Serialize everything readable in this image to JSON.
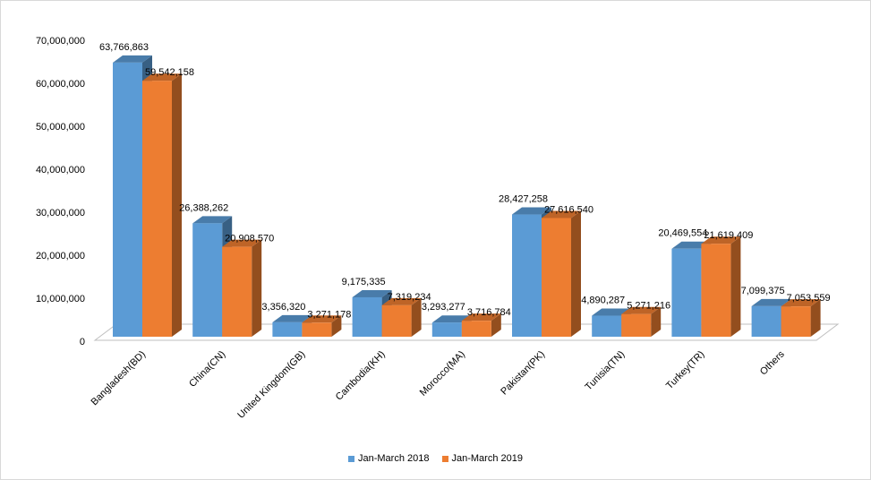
{
  "chart_data": {
    "type": "bar",
    "categories": [
      "Bangladesh(BD)",
      "China(CN)",
      "United Kingdom(GB)",
      "Cambodia(KH)",
      "Morocco(MA)",
      "Pakistan(PK)",
      "Tunisia(TN)",
      "Turkey(TR)",
      "Others"
    ],
    "series": [
      {
        "name": "Jan-March 2018",
        "values": [
          63766863,
          26388262,
          3356320,
          9175335,
          3293277,
          28427258,
          4890287,
          20469554,
          7099375
        ],
        "labels": [
          "63,766,863",
          "26,388,262",
          "3,356,320",
          "9,175,335",
          "3,293,277",
          "28,427,258",
          "4,890,287",
          "20,469,554",
          "7,099,375"
        ],
        "color": "#5b9bd5"
      },
      {
        "name": "Jan-March 2019",
        "values": [
          59542158,
          20908570,
          3271178,
          7319234,
          3716784,
          27616540,
          5271216,
          21619409,
          7053559
        ],
        "labels": [
          "59,542,158",
          "20,908,570",
          "3,271,178",
          "7,319,234",
          "3,716,784",
          "27,616,540",
          "5,271,216",
          "21,619,409",
          "7,053,559"
        ],
        "color": "#ed7d31"
      }
    ],
    "yticks": [
      "0",
      "10,000,000",
      "20,000,000",
      "30,000,000",
      "40,000,000",
      "50,000,000",
      "60,000,000",
      "70,000,000"
    ],
    "ylim": [
      0,
      70000000
    ],
    "grid": false,
    "legend_position": "bottom",
    "style": "3d-clustered-column"
  }
}
